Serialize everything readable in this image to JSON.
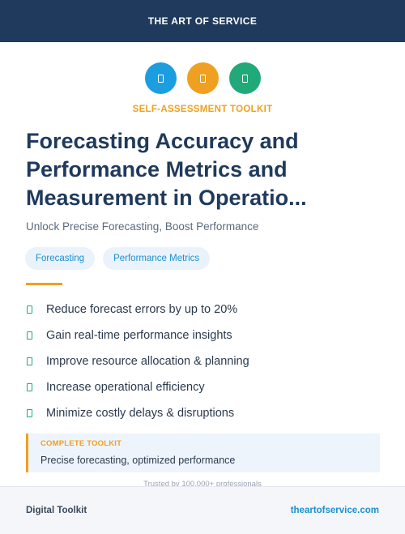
{
  "header": {
    "brand": "THE ART OF SERVICE"
  },
  "icons": [
    {
      "name": "toolkit-icon-1",
      "color": "#1b9ee0"
    },
    {
      "name": "toolkit-icon-2",
      "color": "#f0a020"
    },
    {
      "name": "toolkit-icon-3",
      "color": "#22a97a"
    }
  ],
  "kicker": "SELF-ASSESSMENT TOOLKIT",
  "title": "Forecasting Accuracy and Performance Metrics and Measurement in Operatio...",
  "subtitle": "Unlock Precise Forecasting, Boost Performance",
  "tags": [
    "Forecasting",
    "Performance Metrics"
  ],
  "benefits": [
    "Reduce forecast errors by up to 20%",
    "Gain real-time performance insights",
    "Improve resource allocation & planning",
    "Increase operational efficiency",
    "Minimize costly delays & disruptions"
  ],
  "callout": {
    "label": "COMPLETE TOOLKIT",
    "text": "Precise forecasting, optimized performance"
  },
  "trusted": "Trusted by 100,000+ professionals",
  "footer": {
    "left": "Digital Toolkit",
    "right": "theartofservice.com"
  },
  "colors": {
    "navy": "#1f3a5c",
    "accent_orange": "#f0a020",
    "accent_blue": "#1b9ee0",
    "accent_green": "#22a97a"
  }
}
